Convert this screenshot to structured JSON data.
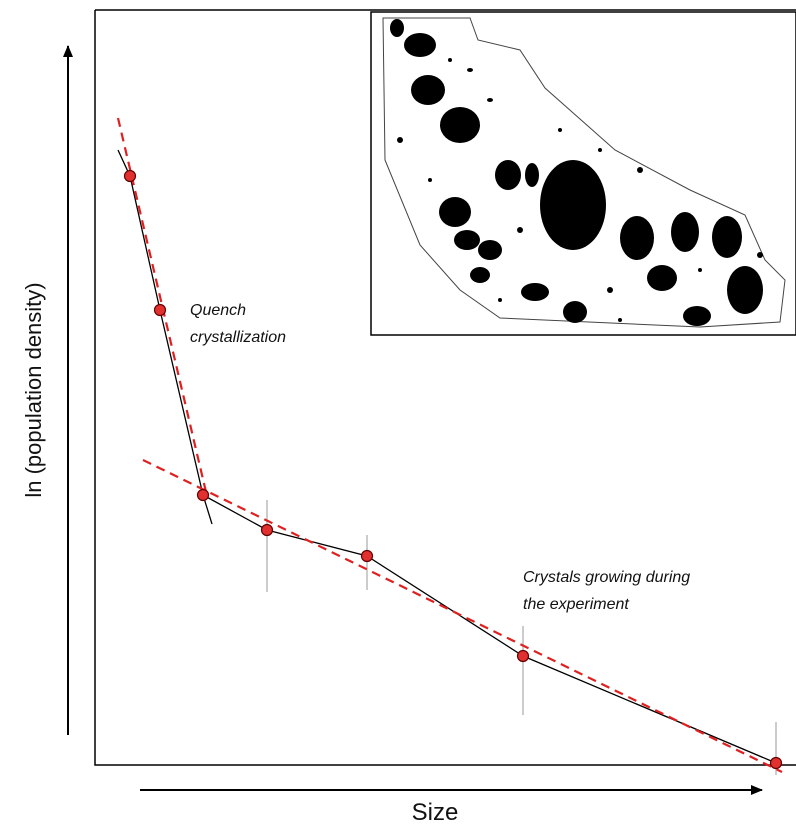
{
  "axes": {
    "y_label": "ln (population density)",
    "x_label": "Size"
  },
  "annotations": {
    "quench": [
      "Quench",
      "crystallization"
    ],
    "growing": [
      "Crystals growing during",
      "the experiment"
    ]
  }
}
